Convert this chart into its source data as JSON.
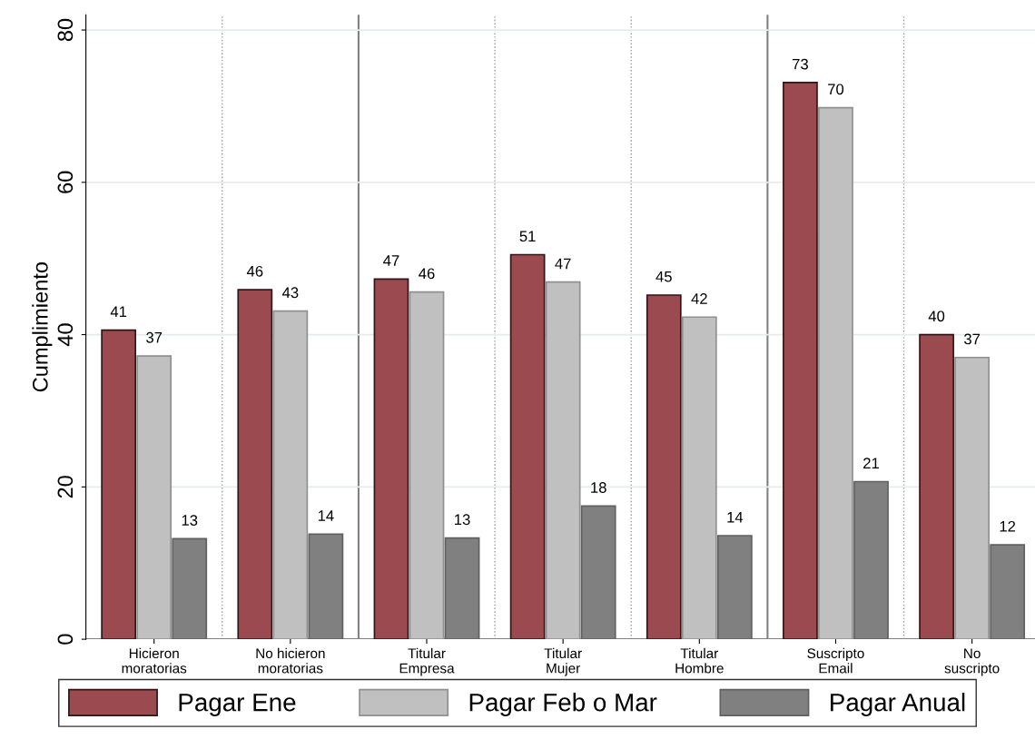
{
  "chart_data": {
    "type": "bar",
    "ylabel": "Cumplimiento",
    "categories": [
      "Hicieron\nmoratorias",
      "No hicieron\nmoratorias",
      "Titular\nEmpresa",
      "Titular\nMujer",
      "Titular\nHombre",
      "Suscripto\nEmail",
      "No\nsuscripto"
    ],
    "series": [
      {
        "name": "Pagar Ene",
        "color": "#9b4a50",
        "values": [
          40.6,
          45.9,
          47.3,
          50.5,
          45.2,
          73.1,
          40.0
        ],
        "value_labels": [
          "41",
          "46",
          "47",
          "51",
          "45",
          "73",
          "40"
        ]
      },
      {
        "name": "Pagar Feb o Mar",
        "color": "#c0c0c0",
        "values": [
          37.2,
          43.1,
          45.6,
          46.9,
          42.3,
          69.8,
          37.0
        ],
        "value_labels": [
          "37",
          "43",
          "46",
          "47",
          "42",
          "70",
          "37"
        ]
      },
      {
        "name": "Pagar Anual",
        "color": "#808080",
        "values": [
          13.2,
          13.8,
          13.3,
          17.5,
          13.6,
          20.7,
          12.4
        ],
        "value_labels": [
          "13",
          "14",
          "13",
          "18",
          "14",
          "21",
          "12"
        ]
      }
    ],
    "ylim": [
      0,
      82
    ],
    "yticks": [
      0,
      20,
      40,
      60,
      80
    ],
    "grid": "y",
    "legend": "bottom"
  }
}
